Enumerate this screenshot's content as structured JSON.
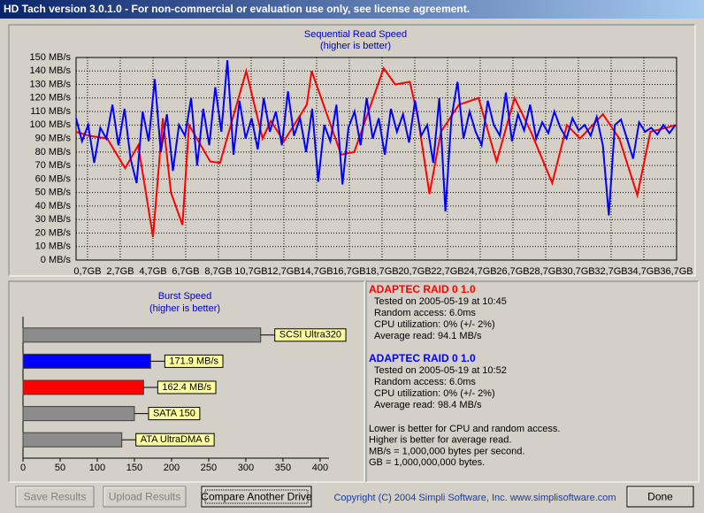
{
  "window": {
    "title": "HD Tach version 3.0.1.0  - For non-commercial or evaluation use only, see license agreement."
  },
  "chart_data": [
    {
      "type": "line",
      "title": "Sequential Read Speed",
      "subtitle": "(higher is better)",
      "xlim": [
        0,
        36.7
      ],
      "ylim": [
        0,
        150
      ],
      "grid": true,
      "yticks": [
        {
          "value": 0,
          "label": "0 MB/s"
        },
        {
          "value": 10,
          "label": "10 MB/s"
        },
        {
          "value": 20,
          "label": "20 MB/s"
        },
        {
          "value": 30,
          "label": "30 MB/s"
        },
        {
          "value": 40,
          "label": "40 MB/s"
        },
        {
          "value": 50,
          "label": "50 MB/s"
        },
        {
          "value": 60,
          "label": "60 MB/s"
        },
        {
          "value": 70,
          "label": "70 MB/s"
        },
        {
          "value": 80,
          "label": "80 MB/s"
        },
        {
          "value": 90,
          "label": "90 MB/s"
        },
        {
          "value": 100,
          "label": "100 MB/s"
        },
        {
          "value": 110,
          "label": "110 MB/s"
        },
        {
          "value": 120,
          "label": "120 MB/s"
        },
        {
          "value": 130,
          "label": "130 MB/s"
        },
        {
          "value": 140,
          "label": "140 MB/s"
        },
        {
          "value": 150,
          "label": "150 MB/s"
        }
      ],
      "xticks": [
        {
          "value": 0.7,
          "label": "0,7GB"
        },
        {
          "value": 2.7,
          "label": "2,7GB"
        },
        {
          "value": 4.7,
          "label": "4,7GB"
        },
        {
          "value": 6.7,
          "label": "6,7GB"
        },
        {
          "value": 8.7,
          "label": "8,7GB"
        },
        {
          "value": 10.7,
          "label": "10,7GB"
        },
        {
          "value": 12.7,
          "label": "12,7GB"
        },
        {
          "value": 14.7,
          "label": "14,7GB"
        },
        {
          "value": 16.7,
          "label": "16,7GB"
        },
        {
          "value": 18.7,
          "label": "18,7GB"
        },
        {
          "value": 20.7,
          "label": "20,7GB"
        },
        {
          "value": 22.7,
          "label": "22,7GB"
        },
        {
          "value": 24.7,
          "label": "24,7GB"
        },
        {
          "value": 26.7,
          "label": "26,7GB"
        },
        {
          "value": 28.7,
          "label": "28,7GB"
        },
        {
          "value": 30.7,
          "label": "30,7GB"
        },
        {
          "value": 32.7,
          "label": "32,7GB"
        },
        {
          "value": 34.7,
          "label": "34,7GB"
        },
        {
          "value": 36.7,
          "label": "36,7GB"
        }
      ],
      "series": [
        {
          "color": "#ff0000",
          "x": [
            0,
            0.8,
            1.9,
            3.0,
            3.8,
            4.7,
            5.3,
            5.8,
            6.5,
            6.9,
            8.2,
            8.8,
            10.4,
            11.4,
            11.9,
            12.7,
            14.1,
            14.4,
            16.2,
            17.0,
            18.8,
            19.5,
            20.4,
            20.9,
            21.6,
            22.3,
            23.4,
            24.6,
            25.7,
            26.8,
            27.8,
            29.1,
            30.0,
            30.8,
            32.2,
            33.2,
            34.3,
            35.1,
            36.7
          ],
          "values": [
            95,
            92,
            90,
            68,
            85,
            17,
            105,
            50,
            26,
            100,
            73,
            72,
            140,
            90,
            103,
            88,
            115,
            140,
            78,
            80,
            142,
            130,
            132,
            105,
            49,
            95,
            115,
            120,
            73,
            120,
            95,
            57,
            100,
            90,
            108,
            90,
            48,
            95,
            100
          ]
        },
        {
          "color": "#0000ff",
          "x": [
            0,
            0.37,
            0.74,
            1.11,
            1.48,
            1.85,
            2.22,
            2.59,
            2.96,
            3.33,
            3.7,
            4.07,
            4.44,
            4.81,
            5.18,
            5.55,
            5.92,
            6.29,
            6.66,
            7.03,
            7.4,
            7.77,
            8.14,
            8.51,
            8.88,
            9.25,
            9.62,
            9.99,
            10.36,
            10.73,
            11.1,
            11.47,
            11.84,
            12.21,
            12.58,
            12.95,
            13.32,
            13.69,
            14.06,
            14.43,
            14.8,
            15.17,
            15.54,
            15.91,
            16.28,
            16.65,
            17.02,
            17.39,
            17.76,
            18.13,
            18.5,
            18.87,
            19.24,
            19.61,
            19.98,
            20.35,
            20.72,
            21.09,
            21.46,
            21.83,
            22.2,
            22.57,
            22.94,
            23.31,
            23.68,
            24.05,
            24.42,
            24.79,
            25.16,
            25.53,
            25.9,
            26.27,
            26.64,
            27.01,
            27.38,
            27.75,
            28.12,
            28.49,
            28.86,
            29.23,
            29.6,
            29.97,
            30.34,
            30.71,
            31.08,
            31.45,
            31.82,
            32.19,
            32.56,
            32.93,
            33.3,
            33.67,
            34.04,
            34.41,
            34.78,
            35.15,
            35.52,
            35.89,
            36.26,
            36.63
          ],
          "values": [
            105,
            88,
            100,
            72,
            98,
            90,
            115,
            85,
            112,
            75,
            57,
            110,
            88,
            134,
            80,
            108,
            66,
            100,
            92,
            120,
            70,
            112,
            85,
            128,
            95,
            148,
            78,
            118,
            90,
            105,
            82,
            120,
            95,
            110,
            85,
            125,
            92,
            105,
            80,
            112,
            58,
            100,
            88,
            115,
            56,
            98,
            110,
            85,
            120,
            90,
            105,
            78,
            112,
            95,
            108,
            87,
            118,
            92,
            100,
            72,
            120,
            36,
            105,
            132,
            90,
            110,
            95,
            85,
            118,
            100,
            92,
            124,
            88,
            108,
            96,
            115,
            90,
            102,
            94,
            110,
            98,
            90,
            105,
            96,
            100,
            92,
            106,
            85,
            33,
            100,
            104,
            90,
            75,
            102,
            95,
            98,
            93,
            100,
            94,
            100
          ]
        }
      ]
    },
    {
      "type": "bar",
      "orientation": "horizontal",
      "title": "Burst Speed",
      "subtitle": "(higher is better)",
      "categories": [
        "SCSI Ultra320",
        null,
        null,
        "SATA 150",
        "ATA UltraDMA 6"
      ],
      "values": [
        320,
        171.9,
        162.4,
        150,
        133
      ],
      "value_labels": [
        null,
        "171.9 MB/s",
        "162.4 MB/s",
        null,
        null
      ],
      "colors": [
        "#8c8c8c",
        "#0000ff",
        "#ff0000",
        "#8c8c8c",
        "#8c8c8c"
      ],
      "xlim": [
        0,
        412
      ],
      "xticks": [
        0,
        50,
        100,
        150,
        200,
        250,
        300,
        350,
        400
      ]
    }
  ],
  "results": [
    {
      "heading": "ADAPTEC RAID 0 1.0",
      "color": "#ff0000",
      "lines": [
        "Tested on 2005-05-19 at 10:45",
        "Random access: 6.0ms",
        "CPU utilization: 0% (+/- 2%)",
        "Average read: 94.1 MB/s"
      ]
    },
    {
      "heading": "ADAPTEC RAID 0 1.0",
      "color": "#0000ff",
      "lines": [
        "Tested on 2005-05-19 at 10:52",
        "Random access: 6.0ms",
        "CPU utilization: 0% (+/- 2%)",
        "Average read: 98.4 MB/s"
      ]
    }
  ],
  "notes": [
    "Lower is better for CPU and random access.",
    "Higher is better for average read.",
    "MB/s = 1,000,000 bytes per second.",
    "GB = 1,000,000,000 bytes."
  ],
  "buttons": [
    {
      "label": "Save Results",
      "enabled": false
    },
    {
      "label": "Upload Results",
      "enabled": false
    },
    {
      "label": "Compare Another Drive",
      "enabled": true
    },
    {
      "label": "Done",
      "enabled": true
    }
  ],
  "copyright": "Copyright (C) 2004 Simpli Software, Inc. www.simplisoftware.com"
}
